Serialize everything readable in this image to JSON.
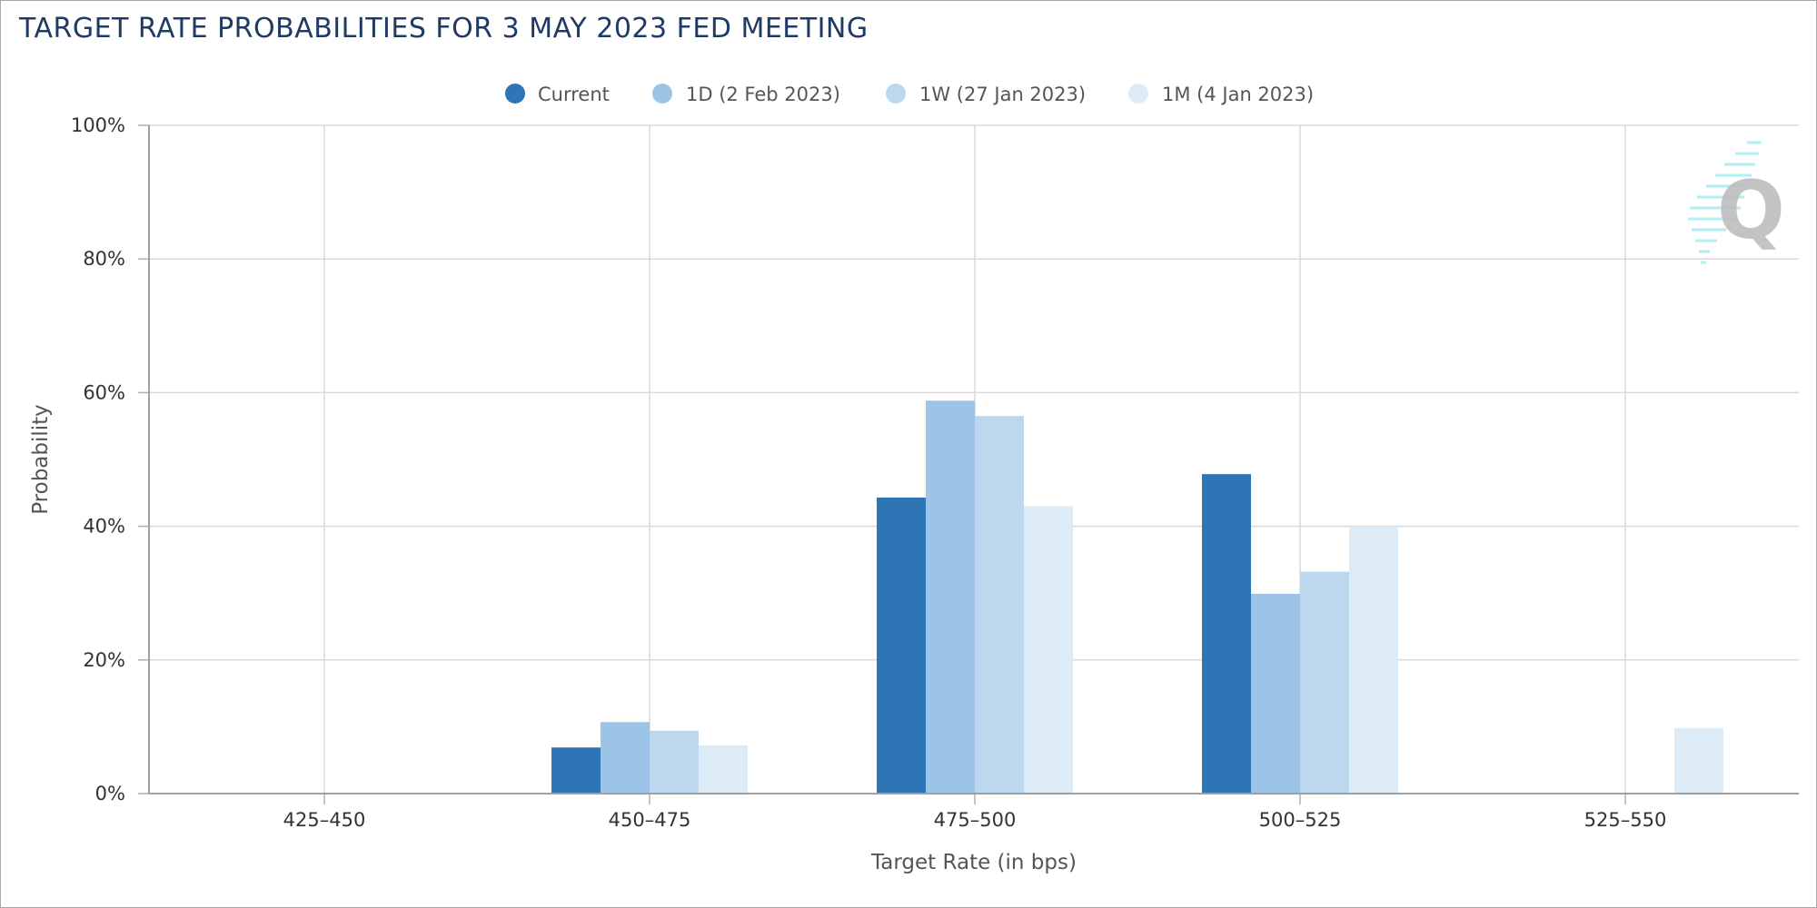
{
  "chart_data": {
    "type": "bar",
    "title": "TARGET RATE PROBABILITIES FOR 3 MAY 2023 FED MEETING",
    "xlabel": "Target Rate (in bps)",
    "ylabel": "Probability",
    "categories": [
      "425-450",
      "450-475",
      "475-500",
      "500-525",
      "525-550"
    ],
    "ylim": [
      0,
      100
    ],
    "yticks": [
      "0%",
      "20%",
      "40%",
      "60%",
      "80%",
      "100%"
    ],
    "grid": true,
    "legend_position": "top-center",
    "series": [
      {
        "name": "Current",
        "color": "#2e75b6",
        "values": [
          0,
          6.9,
          44.3,
          47.8,
          0
        ]
      },
      {
        "name": "1D (2 Feb 2023)",
        "color": "#9dc3e6",
        "values": [
          0,
          10.7,
          58.8,
          29.9,
          0
        ]
      },
      {
        "name": "1W (27 Jan 2023)",
        "color": "#bdd7ee",
        "values": [
          0,
          9.4,
          56.5,
          33.2,
          0
        ]
      },
      {
        "name": "1M (4 Jan 2023)",
        "color": "#ddebf7",
        "values": [
          0,
          7.2,
          43.0,
          40.0,
          9.8
        ]
      }
    ]
  }
}
